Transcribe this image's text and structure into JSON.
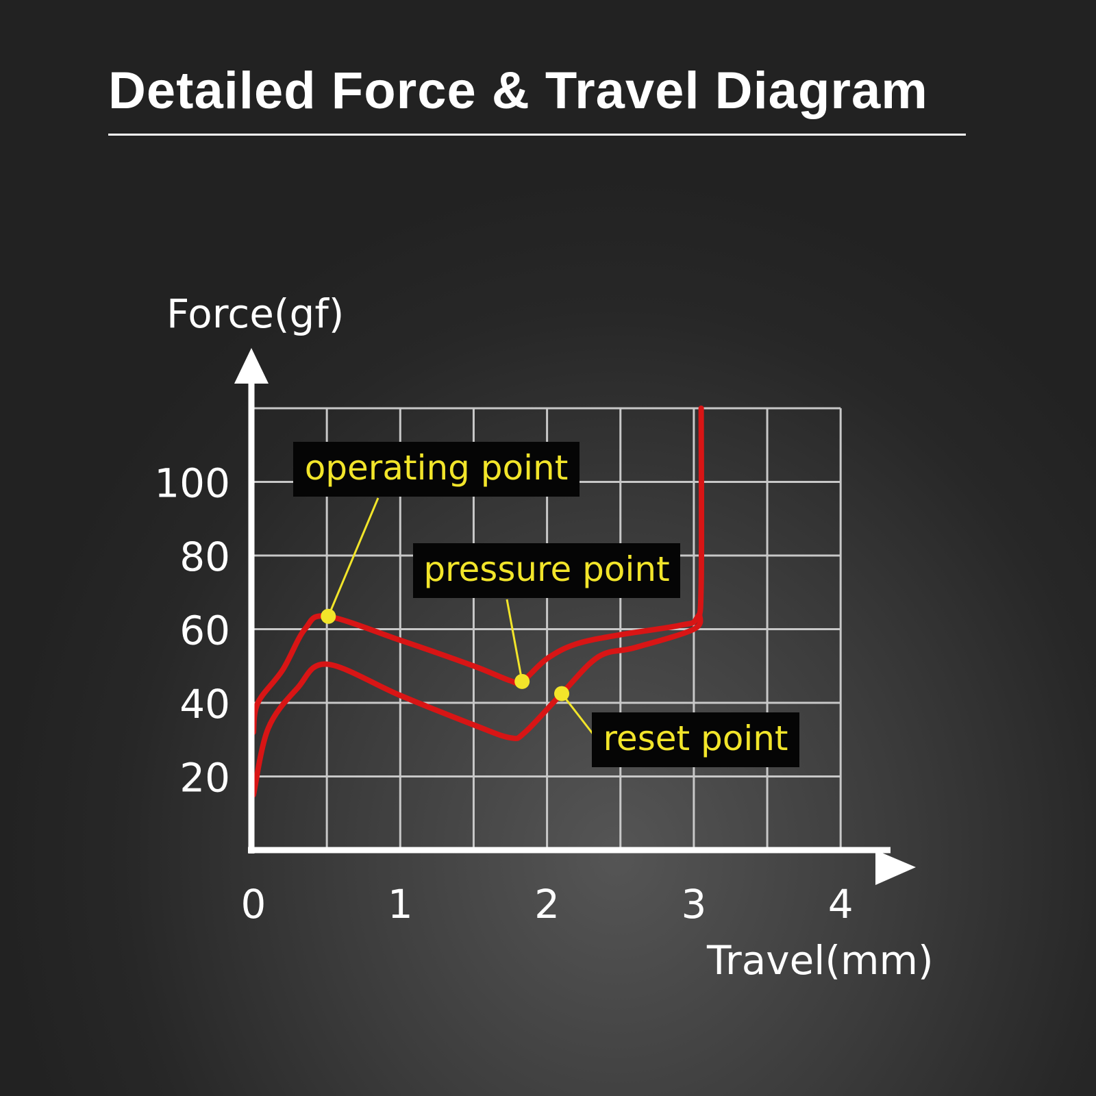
{
  "title": "Detailed Force & Travel Diagram",
  "colors": {
    "curve": "#d81515",
    "point": "#f2e52a",
    "label_bg": "#050505",
    "label_text": "#f2e52a",
    "grid": "#c8c8c8",
    "axis": "#ffffff"
  },
  "chart_data": {
    "type": "line",
    "title": "Detailed Force & Travel Diagram",
    "xlabel": "Travel(mm)",
    "ylabel": "Force(gf)",
    "xlim": [
      0,
      4
    ],
    "ylim": [
      0,
      120
    ],
    "x_ticks": [
      "0",
      "1",
      "2",
      "3",
      "4"
    ],
    "y_ticks": [
      "20",
      "40",
      "60",
      "80",
      "100"
    ],
    "grid": true,
    "series": [
      {
        "points": [
          [
            0,
            32
          ],
          [
            0.03,
            40
          ],
          [
            0.2,
            49
          ],
          [
            0.35,
            60
          ],
          [
            0.5,
            63.5
          ],
          [
            1.0,
            57
          ],
          [
            1.5,
            50
          ],
          [
            1.75,
            46
          ],
          [
            1.83,
            45.8
          ],
          [
            2.0,
            52
          ],
          [
            2.2,
            56
          ],
          [
            2.5,
            58.5
          ],
          [
            2.9,
            61
          ],
          [
            3.02,
            63
          ],
          [
            3.05,
            72
          ],
          [
            3.05,
            120
          ]
        ]
      },
      {
        "points": [
          [
            0,
            15
          ],
          [
            0.1,
            33
          ],
          [
            0.3,
            44
          ],
          [
            0.5,
            50.5
          ],
          [
            1.0,
            42
          ],
          [
            1.5,
            34
          ],
          [
            1.75,
            30.5
          ],
          [
            1.85,
            32
          ],
          [
            2.1,
            42.5
          ],
          [
            2.35,
            52.5
          ],
          [
            2.6,
            55
          ],
          [
            3.0,
            60
          ],
          [
            3.04,
            64
          ]
        ]
      }
    ],
    "annotations": [
      {
        "label": "operating point",
        "x": 0.51,
        "y": 63.5
      },
      {
        "label": "pressure point",
        "x": 1.83,
        "y": 45.8
      },
      {
        "label": "reset point",
        "x": 2.1,
        "y": 42.5
      }
    ]
  }
}
